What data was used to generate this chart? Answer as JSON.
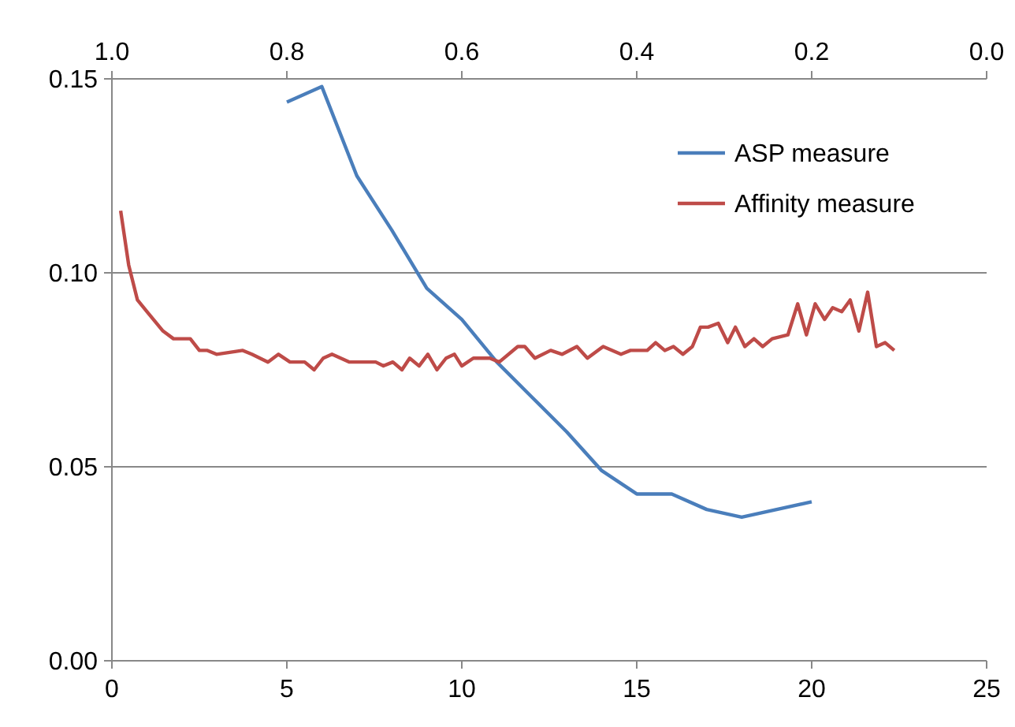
{
  "chart_data": {
    "type": "line",
    "xlim": [
      0,
      25
    ],
    "xticks": [
      0,
      5,
      10,
      15,
      20,
      25
    ],
    "x2lim": [
      1.0,
      0.0
    ],
    "x2ticks": [
      {
        "value": 1.0,
        "label": "1.0"
      },
      {
        "value": 0.8,
        "label": "0.8"
      },
      {
        "value": 0.6,
        "label": "0.6"
      },
      {
        "value": 0.4,
        "label": "0.4"
      },
      {
        "value": 0.2,
        "label": "0.2"
      },
      {
        "value": 0.0,
        "label": "0.0"
      }
    ],
    "ylim": [
      0,
      0.15
    ],
    "yticks": [
      {
        "value": 0,
        "label": "0.00"
      },
      {
        "value": 0.05,
        "label": "0.05"
      },
      {
        "value": 0.1,
        "label": "0.10"
      },
      {
        "value": 0.15,
        "label": "0.15"
      }
    ],
    "grid": "y",
    "legend": "top right",
    "marker": "none",
    "line_style": "solid",
    "series": [
      {
        "name": "ASP measure",
        "color": "#4a7ebb",
        "x": [
          5,
          6,
          7,
          8,
          9,
          10,
          11,
          12,
          13,
          14,
          15,
          16,
          17,
          18,
          20
        ],
        "values": [
          0.144,
          0.148,
          0.125,
          0.111,
          0.096,
          0.088,
          0.077,
          0.068,
          0.059,
          0.049,
          0.043,
          0.043,
          0.039,
          0.037,
          0.041
        ]
      },
      {
        "name": "Affinity measure",
        "color": "#be4b48",
        "x": [
          0.25,
          0.48,
          0.73,
          1.0,
          1.46,
          1.76,
          2.24,
          2.5,
          2.73,
          2.99,
          3.74,
          4.0,
          4.46,
          4.76,
          5.09,
          5.51,
          5.78,
          6.04,
          6.29,
          6.79,
          7.28,
          7.54,
          7.76,
          8.03,
          8.29,
          8.51,
          8.78,
          9.03,
          9.29,
          9.55,
          9.79,
          10.0,
          10.33,
          10.8,
          11.07,
          11.6,
          11.8,
          12.09,
          12.54,
          12.87,
          13.29,
          13.59,
          14.04,
          14.55,
          14.82,
          15.3,
          15.54,
          15.8,
          16.05,
          16.32,
          16.59,
          16.82,
          17.04,
          17.33,
          17.6,
          17.82,
          18.09,
          18.35,
          18.6,
          18.87,
          19.32,
          19.6,
          19.85,
          20.1,
          20.37,
          20.6,
          20.86,
          21.1,
          21.35,
          21.6,
          21.85,
          22.1,
          22.36
        ],
        "values": [
          0.116,
          0.102,
          0.093,
          0.09,
          0.085,
          0.083,
          0.083,
          0.08,
          0.08,
          0.079,
          0.08,
          0.079,
          0.077,
          0.079,
          0.077,
          0.077,
          0.075,
          0.078,
          0.079,
          0.077,
          0.077,
          0.077,
          0.076,
          0.077,
          0.075,
          0.078,
          0.076,
          0.079,
          0.075,
          0.078,
          0.079,
          0.076,
          0.078,
          0.078,
          0.077,
          0.081,
          0.081,
          0.078,
          0.08,
          0.079,
          0.081,
          0.078,
          0.081,
          0.079,
          0.08,
          0.08,
          0.082,
          0.08,
          0.081,
          0.079,
          0.081,
          0.086,
          0.086,
          0.087,
          0.082,
          0.086,
          0.081,
          0.083,
          0.081,
          0.083,
          0.084,
          0.092,
          0.084,
          0.092,
          0.088,
          0.091,
          0.09,
          0.093,
          0.085,
          0.095,
          0.081,
          0.082,
          0.08
        ]
      }
    ]
  }
}
